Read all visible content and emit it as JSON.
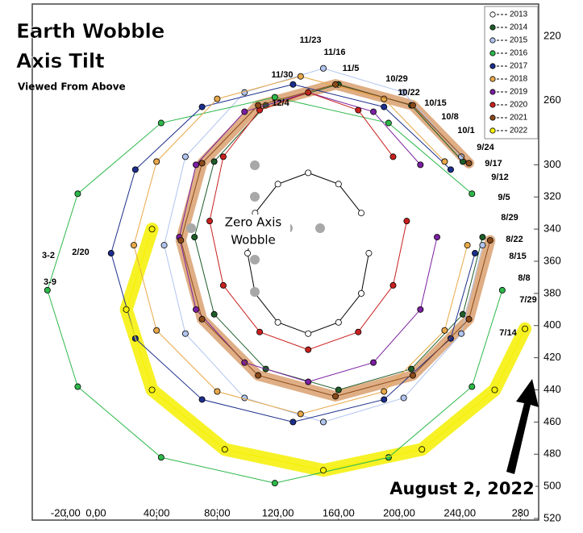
{
  "chart_data": {
    "type": "scatter",
    "connect": true,
    "title": [
      "Earth Wobble",
      "Axis Tilt"
    ],
    "subtitle": "Viewed From Above",
    "annotation_zero": [
      "Zero Axis",
      "Wobble"
    ],
    "annotation_date": "August 2, 2022",
    "xlim": [
      -42,
      292
    ],
    "ylim": [
      521,
      200
    ],
    "xticks": [
      {
        "value": -20,
        "label": "-20,00"
      },
      {
        "value": 0,
        "label": "0,00"
      },
      {
        "value": 40,
        "label": "40,00"
      },
      {
        "value": 80,
        "label": "80,00"
      },
      {
        "value": 120,
        "label": "120,00"
      },
      {
        "value": 160,
        "label": "160,00"
      },
      {
        "value": 200,
        "label": "200,00"
      },
      {
        "value": 240,
        "label": "240,00"
      },
      280
    ],
    "yticks": [
      220,
      260,
      300,
      320,
      340,
      360,
      380,
      400,
      420,
      440,
      460,
      480,
      500,
      520
    ],
    "legend": "top-right",
    "date_labels": [
      "11/23",
      "11/16",
      "11/5",
      "10/29",
      "10/22",
      "10/15",
      "10/8",
      "10/1",
      "9/24",
      "9/17",
      "9/12",
      "9/5",
      "8/29",
      "8/22",
      "8/15",
      "8/8",
      "7/29",
      "7/14",
      "11/30",
      "12/4",
      "3-2",
      "3-9",
      "2/20"
    ],
    "series": [
      {
        "name": "2013",
        "color": "#ffffff",
        "x": [
          180,
          175,
          160,
          140,
          120,
          105,
          100,
          105,
          120,
          140,
          160,
          175
        ],
        "y": [
          355,
          380,
          398,
          405,
          398,
          380,
          355,
          330,
          312,
          305,
          312,
          330
        ]
      },
      {
        "name": "2014",
        "color": "#1e5c2a",
        "x": [
          255,
          242,
          208,
          160,
          112,
          78,
          65,
          78,
          112,
          160,
          208,
          242
        ],
        "y": [
          345,
          393,
          427,
          440,
          427,
          393,
          345,
          298,
          263,
          250,
          263,
          298
        ]
      },
      {
        "name": "2015",
        "color": "#b0c4ee",
        "x": [
          255,
          241,
          203,
          150,
          98,
          59,
          45,
          59,
          98,
          150,
          203,
          241
        ],
        "y": [
          350,
          405,
          445,
          460,
          445,
          405,
          350,
          295,
          255,
          240,
          255,
          295
        ]
      },
      {
        "name": "2016",
        "color": "#2db84a",
        "x": [
          268,
          248,
          193,
          118,
          43,
          -12,
          -32,
          -12,
          43,
          118,
          193,
          248
        ],
        "y": [
          378,
          438,
          482,
          498,
          482,
          438,
          378,
          318,
          274,
          258,
          274,
          318
        ]
      },
      {
        "name": "2017",
        "color": "#1c2e8c",
        "x": [
          250,
          234,
          190,
          130,
          70,
          26,
          10,
          26,
          70,
          130,
          190,
          234
        ],
        "y": [
          355,
          408,
          446,
          460,
          446,
          408,
          355,
          303,
          264,
          250,
          264,
          303
        ]
      },
      {
        "name": "2018",
        "color": "#e8a848",
        "x": [
          245,
          230,
          190,
          135,
          80,
          40,
          25,
          40,
          80,
          135,
          190,
          230
        ],
        "y": [
          350,
          403,
          441,
          455,
          441,
          403,
          350,
          298,
          259,
          245,
          259,
          298
        ]
      },
      {
        "name": "2019",
        "color": "#7a1fa0",
        "x": [
          225,
          214,
          183,
          140,
          98,
          66,
          55,
          66,
          98,
          140,
          183,
          214
        ],
        "y": [
          345,
          390,
          423,
          435,
          423,
          390,
          345,
          300,
          267,
          255,
          267,
          300
        ]
      },
      {
        "name": "2020",
        "color": "#c8201e",
        "x": [
          205,
          196,
          173,
          140,
          108,
          84,
          75,
          84,
          108,
          140,
          173,
          196
        ],
        "y": [
          335,
          375,
          404,
          415,
          404,
          375,
          335,
          295,
          266,
          255,
          266,
          295
        ]
      },
      {
        "name": "2021",
        "color": "#8b4a1a",
        "highlight": "#d9a070",
        "x": [
          260,
          246,
          209,
          158,
          107,
          70,
          56,
          70,
          107,
          158,
          209,
          246
        ],
        "y": [
          347,
          396,
          431,
          444,
          431,
          396,
          347,
          299,
          263,
          250,
          263,
          299
        ]
      },
      {
        "name": "2022",
        "color": "#f5f000",
        "highlight": "#f5f000",
        "x": [
          37,
          20,
          37,
          85,
          150,
          215,
          263,
          283
        ],
        "y": [
          340,
          390,
          440,
          477,
          490,
          477,
          440,
          402
        ]
      }
    ]
  }
}
